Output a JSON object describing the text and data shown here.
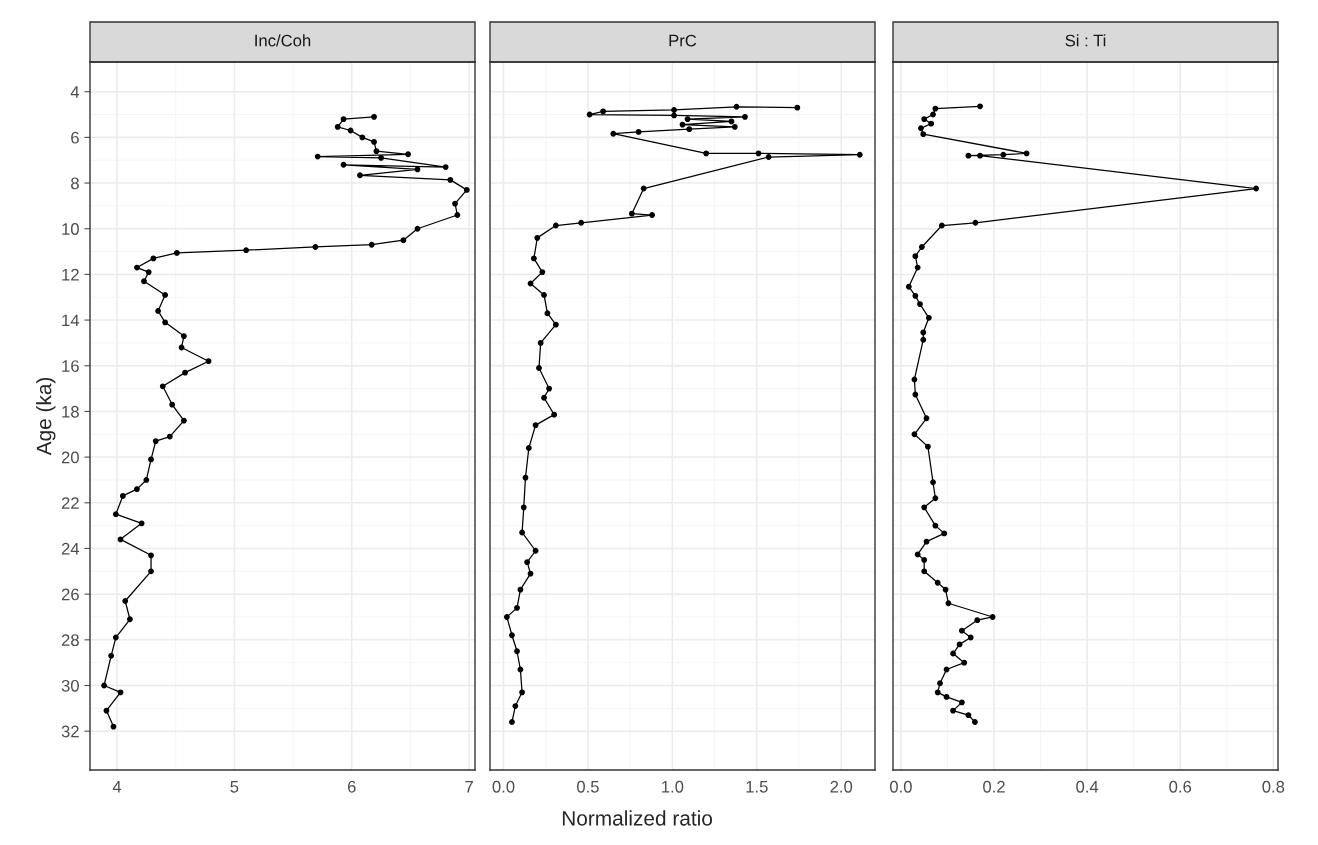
{
  "chart_data": [
    {
      "type": "line",
      "title": "Inc/Coh",
      "ylabel": "Age (ka)",
      "marker": "circle",
      "line_style": "solid",
      "grid": true,
      "xlim": [
        3.77,
        7.05
      ],
      "xticks": [
        4,
        5,
        6,
        7
      ],
      "ylim": [
        33.7,
        2.7
      ],
      "yticks": [
        4,
        6,
        8,
        10,
        12,
        14,
        16,
        18,
        20,
        22,
        24,
        26,
        28,
        30,
        32
      ],
      "series": [
        {
          "color": "#000000",
          "x": [
            6.19,
            5.93,
            5.88,
            5.99,
            6.09,
            6.19,
            6.21,
            6.48,
            5.71,
            6.25,
            6.8,
            5.93,
            6.56,
            6.07,
            6.84,
            6.98,
            6.88,
            6.9,
            6.56,
            6.44,
            6.17,
            5.69,
            5.1,
            4.51,
            4.31,
            4.17,
            4.27,
            4.23,
            4.41,
            4.35,
            4.41,
            4.57,
            4.55,
            4.78,
            4.58,
            4.39,
            4.47,
            4.57,
            4.45,
            4.33,
            4.29,
            4.25,
            4.17,
            4.05,
            3.99,
            4.21,
            4.03,
            4.29,
            4.29,
            4.07,
            4.11,
            3.99,
            3.95,
            3.89,
            4.03,
            3.91,
            3.97
          ],
          "values": [
            5.1,
            5.2,
            5.54,
            5.7,
            6.0,
            6.2,
            6.6,
            6.74,
            6.84,
            6.9,
            7.3,
            7.2,
            7.4,
            7.66,
            7.86,
            8.3,
            8.9,
            9.4,
            10.0,
            10.5,
            10.7,
            10.8,
            10.94,
            11.06,
            11.3,
            11.7,
            11.9,
            12.3,
            12.9,
            13.6,
            14.1,
            14.7,
            15.2,
            15.8,
            16.3,
            16.9,
            17.7,
            18.4,
            19.1,
            19.3,
            20.1,
            21.0,
            21.4,
            21.7,
            22.5,
            22.9,
            23.6,
            24.3,
            25.0,
            26.3,
            27.1,
            27.9,
            28.7,
            30.0,
            30.3,
            31.1,
            31.8
          ]
        }
      ]
    },
    {
      "type": "line",
      "title": "PrC",
      "xlabel": "Normalized ratio",
      "marker": "circle",
      "line_style": "solid",
      "grid": true,
      "tick_labels": "x",
      "xlim": [
        -0.08,
        2.2
      ],
      "xticks": [
        {
          "value": 0,
          "label": "0.0"
        },
        0.5,
        {
          "value": 1,
          "label": "1.0"
        },
        1.5,
        {
          "value": 2,
          "label": "2.0"
        }
      ],
      "ylim": [
        33.7,
        2.7
      ],
      "yticks": [
        4,
        6,
        8,
        10,
        12,
        14,
        16,
        18,
        20,
        22,
        24,
        26,
        28,
        30,
        32
      ],
      "series": [
        {
          "color": "#000000",
          "x": [
            1.74,
            1.38,
            1.01,
            0.59,
            0.51,
            1.01,
            1.43,
            1.09,
            1.35,
            1.06,
            1.37,
            1.1,
            0.8,
            0.65,
            1.2,
            1.51,
            2.11,
            1.57,
            0.83,
            0.76,
            0.88,
            0.46,
            0.31,
            0.2,
            0.18,
            0.23,
            0.16,
            0.24,
            0.26,
            0.31,
            0.22,
            0.21,
            0.27,
            0.24,
            0.3,
            0.19,
            0.15,
            0.13,
            0.12,
            0.11,
            0.19,
            0.14,
            0.16,
            0.1,
            0.08,
            0.02,
            0.05,
            0.08,
            0.1,
            0.11,
            0.07,
            0.05
          ],
          "values": [
            4.7,
            4.66,
            4.8,
            4.86,
            5.0,
            5.04,
            5.1,
            5.2,
            5.3,
            5.44,
            5.54,
            5.64,
            5.76,
            5.84,
            6.7,
            6.7,
            6.76,
            6.86,
            8.24,
            9.34,
            9.4,
            9.74,
            9.86,
            10.4,
            11.3,
            11.9,
            12.4,
            12.9,
            13.7,
            14.2,
            15.0,
            16.1,
            17.0,
            17.4,
            18.14,
            18.6,
            19.6,
            20.9,
            22.2,
            23.3,
            24.1,
            24.6,
            25.1,
            25.8,
            26.6,
            27.0,
            27.8,
            28.5,
            29.3,
            30.3,
            30.9,
            31.6
          ]
        }
      ]
    },
    {
      "type": "line",
      "title": "Si : Ti",
      "marker": "circle",
      "line_style": "solid",
      "grid": true,
      "tick_labels": "x",
      "xlim": [
        -0.017,
        0.81
      ],
      "xticks": [
        {
          "value": 0,
          "label": "0.0"
        },
        0.2,
        0.4,
        0.6,
        0.8
      ],
      "ylim": [
        33.7,
        2.7
      ],
      "yticks": [
        4,
        6,
        8,
        10,
        12,
        14,
        16,
        18,
        20,
        22,
        24,
        26,
        28,
        30,
        32
      ],
      "series": [
        {
          "color": "#000000",
          "x": [
            0.17,
            0.074,
            0.069,
            0.05,
            0.065,
            0.043,
            0.048,
            0.27,
            0.22,
            0.145,
            0.17,
            0.763,
            0.16,
            0.088,
            0.045,
            0.031,
            0.036,
            0.017,
            0.031,
            0.041,
            0.06,
            0.048,
            0.048,
            0.029,
            0.031,
            0.055,
            0.029,
            0.058,
            0.069,
            0.074,
            0.05,
            0.074,
            0.093,
            0.055,
            0.036,
            0.05,
            0.05,
            0.079,
            0.096,
            0.102,
            0.197,
            0.164,
            0.131,
            0.15,
            0.126,
            0.112,
            0.136,
            0.098,
            0.084,
            0.079,
            0.098,
            0.131,
            0.112,
            0.145,
            0.159
          ],
          "values": [
            4.64,
            4.74,
            5.0,
            5.2,
            5.4,
            5.6,
            5.86,
            6.7,
            6.76,
            6.8,
            6.8,
            8.24,
            9.74,
            9.86,
            10.8,
            11.2,
            11.7,
            12.54,
            12.94,
            13.3,
            13.9,
            14.54,
            14.86,
            16.6,
            17.26,
            18.3,
            19.0,
            19.54,
            21.1,
            21.8,
            22.2,
            23.0,
            23.34,
            23.7,
            24.26,
            24.5,
            25.0,
            25.5,
            25.8,
            26.4,
            27.0,
            27.14,
            27.6,
            27.9,
            28.2,
            28.6,
            29.0,
            29.3,
            29.9,
            30.3,
            30.5,
            30.74,
            31.1,
            31.3,
            31.6
          ]
        }
      ]
    }
  ]
}
